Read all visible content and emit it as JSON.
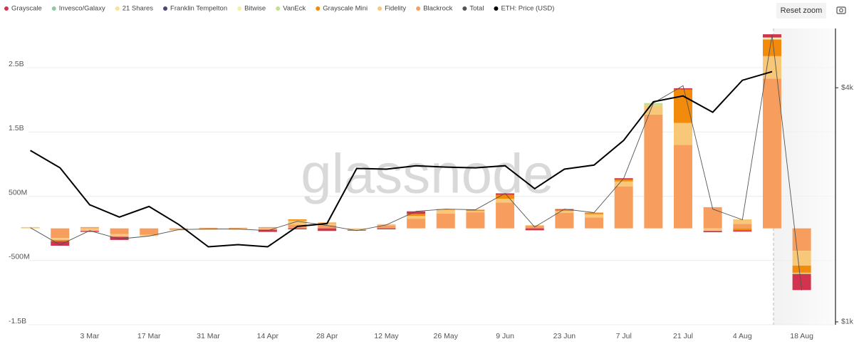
{
  "chart_data": {
    "type": "bar",
    "watermark": "glassnode",
    "reset_button": "Reset zoom",
    "categories": [
      null,
      null,
      "3 Mar",
      null,
      "17 Mar",
      null,
      "31 Mar",
      null,
      "14 Apr",
      null,
      "28 Apr",
      null,
      "12 May",
      null,
      "26 May",
      null,
      "9 Jun",
      null,
      "23 Jun",
      null,
      "7 Jul",
      null,
      "21 Jul",
      null,
      "4 Aug",
      null,
      "18 Aug"
    ],
    "ylim": [
      -1500,
      3110
    ],
    "yticks": [
      {
        "value": -1500,
        "label": "-1.5B"
      },
      {
        "value": -500,
        "label": "-500M"
      },
      {
        "value": 500,
        "label": "500M"
      },
      {
        "value": 1500,
        "label": "1.5B"
      },
      {
        "value": 2500,
        "label": "2.5B"
      }
    ],
    "y2lim": [
      983,
      5680
    ],
    "y2log": true,
    "y2ticks": [
      {
        "value": 1000,
        "label": "$1k"
      },
      {
        "value": 4000,
        "label": "$4k"
      }
    ],
    "grid": true,
    "series": [
      {
        "name": "Grayscale",
        "color": "#d2334f",
        "values": [
          0,
          -70,
          -15,
          -50,
          0,
          0,
          0,
          0,
          -35,
          -15,
          -40,
          -10,
          -15,
          40,
          0,
          0,
          25,
          -30,
          10,
          0,
          20,
          0,
          20,
          -20,
          -20,
          50,
          -250
        ]
      },
      {
        "name": "Invesco/Galaxy",
        "color": "#8fcaa6",
        "values": [
          0,
          0,
          0,
          0,
          0,
          0,
          0,
          0,
          0,
          0,
          0,
          0,
          0,
          0,
          0,
          0,
          0,
          0,
          0,
          0,
          0,
          0,
          0,
          0,
          0,
          0,
          0
        ]
      },
      {
        "name": "21 Shares",
        "color": "#f6e39a",
        "values": [
          0,
          0,
          0,
          0,
          0,
          0,
          0,
          0,
          0,
          0,
          0,
          0,
          0,
          0,
          0,
          0,
          0,
          0,
          0,
          0,
          0,
          0,
          0,
          0,
          0,
          0,
          0
        ]
      },
      {
        "name": "Franklin Tempelton",
        "color": "#4a4878",
        "values": [
          0,
          0,
          0,
          0,
          0,
          0,
          0,
          0,
          0,
          0,
          0,
          0,
          0,
          0,
          0,
          0,
          0,
          0,
          0,
          0,
          0,
          0,
          0,
          0,
          0,
          0,
          0
        ]
      },
      {
        "name": "Bitwise",
        "color": "#f4f1a6",
        "values": [
          0,
          0,
          0,
          0,
          0,
          0,
          0,
          0,
          0,
          0,
          0,
          0,
          0,
          0,
          0,
          0,
          0,
          0,
          0,
          0,
          0,
          0,
          0,
          0,
          0,
          30,
          0
        ]
      },
      {
        "name": "VanEck",
        "color": "#c2e08e",
        "values": [
          0,
          0,
          0,
          0,
          0,
          0,
          0,
          0,
          0,
          0,
          0,
          0,
          0,
          0,
          0,
          0,
          0,
          0,
          0,
          0,
          0,
          40,
          0,
          0,
          0,
          0,
          -20
        ]
      },
      {
        "name": "Grayscale Mini",
        "color": "#f28b0c",
        "values": [
          0,
          -20,
          0,
          0,
          0,
          0,
          0,
          0,
          0,
          20,
          10,
          0,
          0,
          30,
          10,
          20,
          60,
          0,
          20,
          25,
          30,
          0,
          520,
          0,
          -30,
          260,
          -110
        ]
      },
      {
        "name": "Fidelity",
        "color": "#f8c878",
        "values": [
          20,
          -30,
          -40,
          -40,
          -20,
          -10,
          -20,
          -20,
          -20,
          60,
          30,
          -25,
          20,
          45,
          60,
          20,
          60,
          10,
          30,
          50,
          80,
          140,
          340,
          -40,
          70,
          350,
          -230
        ]
      },
      {
        "name": "Blackrock",
        "color": "#f79e5e",
        "values": [
          0,
          -150,
          20,
          -90,
          -100,
          -20,
          10,
          10,
          20,
          60,
          50,
          0,
          45,
          150,
          230,
          250,
          400,
          40,
          240,
          170,
          650,
          1770,
          1300,
          330,
          70,
          2330,
          -350
        ]
      },
      {
        "name": "Total",
        "color": "#555555",
        "type": "line",
        "values": [
          10,
          -255,
          -35,
          -165,
          -120,
          -20,
          -10,
          -10,
          -35,
          110,
          45,
          -35,
          55,
          265,
          300,
          290,
          545,
          20,
          300,
          245,
          780,
          1950,
          2220,
          300,
          135,
          3010,
          -965
        ]
      },
      {
        "name": "ETH: Price (USD)",
        "color": "#000000",
        "type": "line",
        "axis": "y2",
        "values": [
          2760,
          2490,
          2000,
          1860,
          1980,
          1780,
          1560,
          1580,
          1560,
          1760,
          1790,
          2480,
          2470,
          2520,
          2500,
          2490,
          2520,
          2200,
          2470,
          2530,
          2930,
          3680,
          3810,
          3460,
          4180,
          4400,
          null
        ]
      }
    ]
  }
}
